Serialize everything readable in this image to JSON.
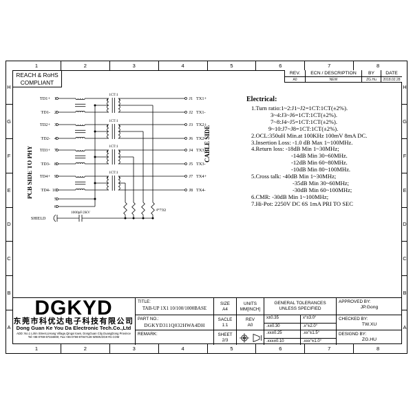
{
  "sheet": {
    "grid_columns": [
      "1",
      "2",
      "3",
      "4",
      "5",
      "6",
      "7",
      "8"
    ],
    "grid_rows": [
      "H",
      "G",
      "F",
      "E",
      "D",
      "C",
      "B",
      "A"
    ]
  },
  "compliance_box": {
    "line1": "REACH & RoHS",
    "line2": "COMPLIANT"
  },
  "revision_table": {
    "headers": {
      "rev": "REV.",
      "description": "ECN / DESCRIPTION",
      "by": "BY",
      "date": "DATE"
    },
    "row": {
      "rev": "A0",
      "description": "NEW",
      "by": "ZG.Hu",
      "date": "2018.02.28"
    }
  },
  "schematic": {
    "left_side_label": "PCB SIDE TO PHY",
    "right_side_label": "CABLE SIDE",
    "transformer_label": "1CT:1",
    "channels": [
      {
        "top": {
          "in": "TD1+",
          "in_pin": "1",
          "out_pin": "J1",
          "out": "TX1+"
        },
        "bottom": {
          "in": "TD1-",
          "in_pin": "2",
          "out_pin": "J2",
          "out": "TX1-"
        }
      },
      {
        "top": {
          "in": "TD2+",
          "in_pin": "3",
          "out_pin": "J3",
          "out": "TX2+"
        },
        "bottom": {
          "in": "TD2-",
          "in_pin": "4",
          "out_pin": "J6",
          "out": "TX2-"
        }
      },
      {
        "top": {
          "in": "TD3+",
          "in_pin": "7",
          "out_pin": "J4",
          "out": "TX3+"
        },
        "bottom": {
          "in": "TD3-",
          "in_pin": "8",
          "out_pin": "J5",
          "out": "TX3-"
        }
      },
      {
        "top": {
          "in": "TD4+",
          "in_pin": "9",
          "out_pin": "J7",
          "out": "TX4+"
        },
        "bottom": {
          "in": "TD4-",
          "in_pin": "10",
          "out_pin": "J8",
          "out": "TX4-"
        }
      }
    ],
    "center_tap_pins": [
      "5",
      "6"
    ],
    "shield_label": "SHIELD",
    "capacitor_label": "1000pF/2KV",
    "resistor_label": "4*75Ω"
  },
  "electrical": {
    "heading": "Electrical:",
    "lines": [
      {
        "indent": 7,
        "text": "1.Turn ratio:1~2:J1~J2=1CT:1CT(±2%)."
      },
      {
        "indent": 35,
        "text": "3~4:J3~J6=1CT:1CT(±2%)."
      },
      {
        "indent": 35,
        "text": "7~8:J4~J5=1CT:1CT(±2%)."
      },
      {
        "indent": 32,
        "text": "9~10:J7~J8=1CT:1CT(±2%)."
      },
      {
        "indent": 7,
        "text": "2.OCL:350uH Min.at 100KHz 100mV 8mA DC."
      },
      {
        "indent": 7,
        "text": "3.Insertion Loss: -1.0 dB Max 1~100MHz."
      },
      {
        "indent": 7,
        "text": "4.Return loss: -18dB Min 1~30MHz;"
      },
      {
        "indent": 65,
        "text": "-14dB Min 30~60MHz."
      },
      {
        "indent": 65,
        "text": "-12dB Min 60~80MHz."
      },
      {
        "indent": 65,
        "text": "-10dB Min 80~100MHz."
      },
      {
        "indent": 7,
        "text": "5.Cross talk: -40dB Min 1~30MHz;"
      },
      {
        "indent": 67,
        "text": "-35dB Min 30~60MHz;"
      },
      {
        "indent": 67,
        "text": "-30dB Min 60~100MHz;"
      },
      {
        "indent": 7,
        "text": "6.CMR: -30dB Min 1~100MHz;"
      },
      {
        "indent": 7,
        "text": "7.Hi-Pot: 2250V DC  6S 1mA PRI TO SEC"
      }
    ]
  },
  "title_block": {
    "logo_text": "DGKYD",
    "company_cn": "东莞市科优达电子科技有限公司",
    "company_en": "Dong Guan Ke You Da Electronic Tech.Co.,Ltd",
    "address_line": "ADD :No.1 LiXin Street,LiHang Village,Qingxi town, DongGuan City,GuangDong Province",
    "contact_line": "Tel:+86-0769-87334800; Fax:+86-0769-87847128  WWW.DGKYD.COM",
    "title_label": "TITLE:",
    "title_value": "TAB-UP 1X1 10/100/1000BASE",
    "part_no_label": "PART NO.:",
    "part_no_value": "DGKYD311Q032HWA4DH",
    "remark_label": "REMARK:",
    "size_label": "SIZE",
    "size_value": "A4",
    "units_label": "UNITS",
    "units_value": "MM[INCH]",
    "scale_label": "SACLE",
    "scale_value": "1:1",
    "rev_label": "REV",
    "rev_value": "A0",
    "sheet_label": "SHEET",
    "sheet_value": "2/3",
    "tol_header_line1": "GENERAL TOLERANCES",
    "tol_header_line2": "UNLESS SPECIFIED",
    "tolerances": [
      {
        "linear": "x±0.35",
        "angular": "x°±3.0°"
      },
      {
        "linear": ".x±0.30",
        "angular": ".x°±2.0°"
      },
      {
        "linear": ".xx±0.25",
        "angular": ".xx°±1.5°"
      },
      {
        "linear": ".xxx±0.10",
        "angular": ".xxx°±1.0°"
      }
    ],
    "approved_by_label": "APPROVED BY:",
    "approved_by": "JP.Gong",
    "checked_by_label": "CHECKED BY:",
    "checked_by": "TW.XU",
    "designed_by_label": "DESIGND BY:",
    "designed_by": "ZG.HU"
  }
}
